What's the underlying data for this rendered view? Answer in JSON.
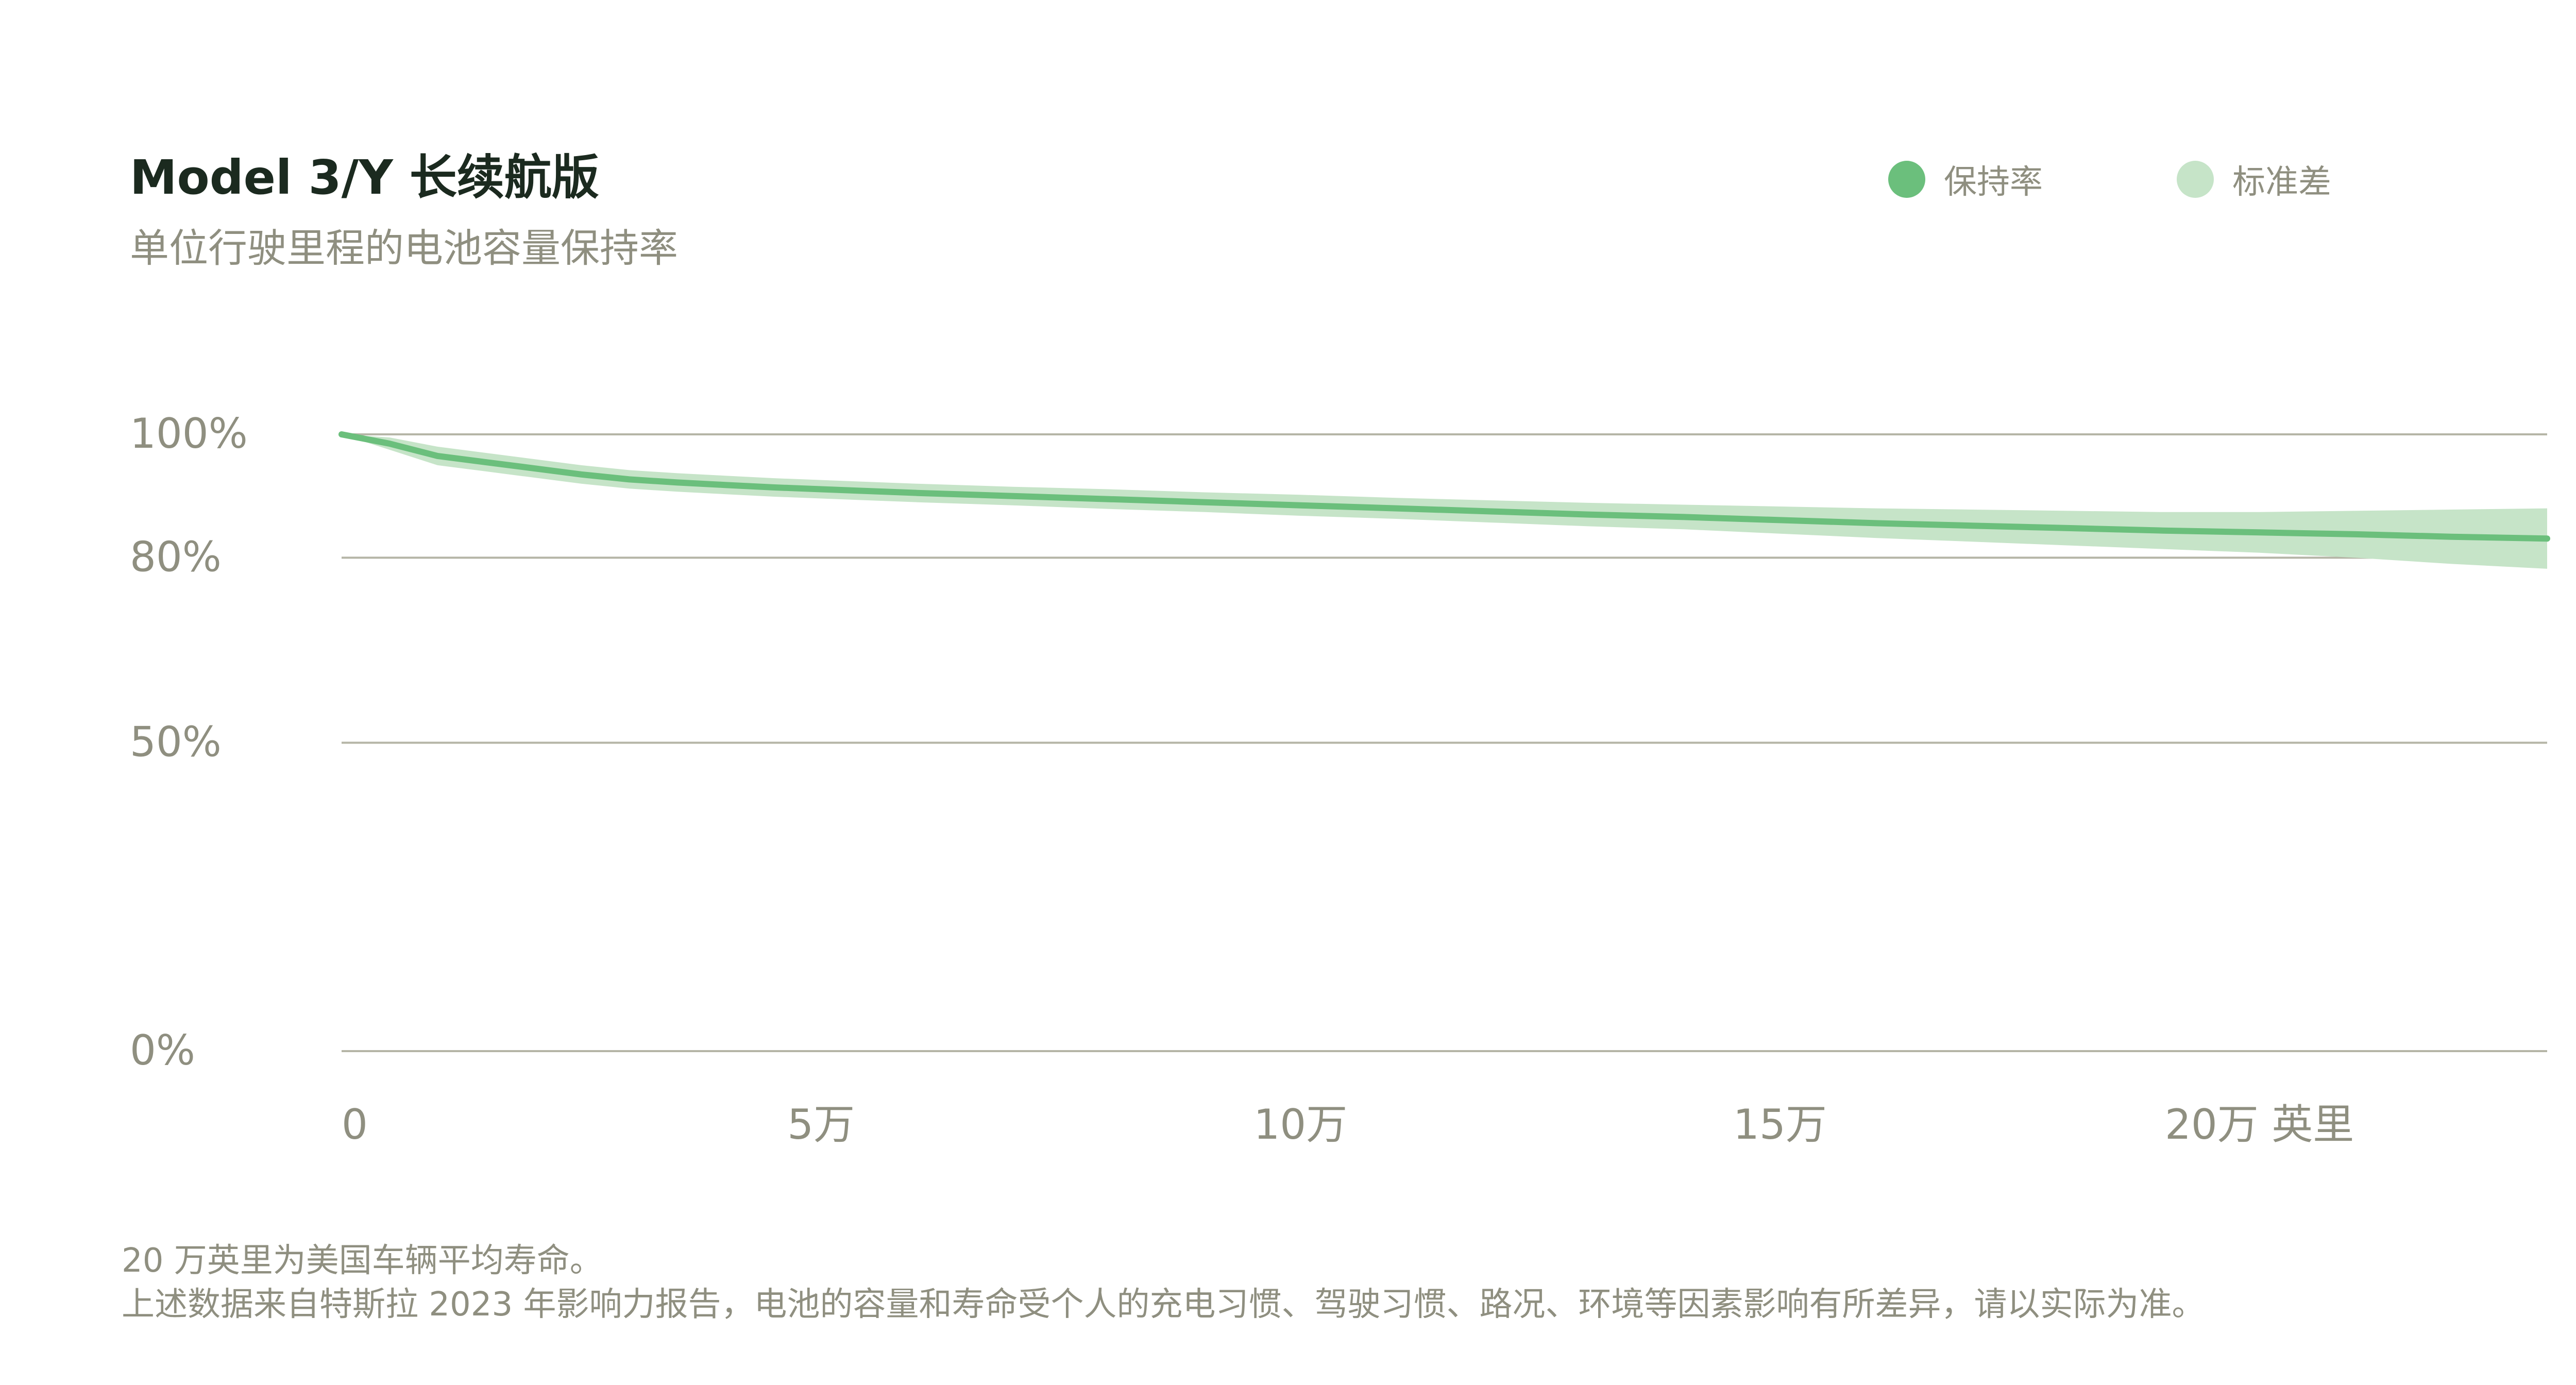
{
  "header": {
    "title": "Model 3/Y 长续航版",
    "subtitle": "单位行驶里程的电池容量保持率"
  },
  "legend": [
    {
      "label": "保持率",
      "color": "#6bbf7c"
    },
    {
      "label": "标准差",
      "color": "#c6e4c8"
    }
  ],
  "footnotes": [
    "20 万英里为美国车辆平均寿命。",
    "上述数据来自特斯拉 2023 年影响力报告，电池的容量和寿命受个人的充电习惯、驾驶习惯、路况、环境等因素影响有所差异，请以实际为准。"
  ],
  "colors": {
    "line": "#6bbf7c",
    "band": "#c6e4c8",
    "grid": "#b5b5a6",
    "tick_text": "#8f8f80"
  },
  "chart_data": {
    "type": "area",
    "title": "Model 3/Y 长续航版",
    "subtitle": "单位行驶里程的电池容量保持率",
    "xlabel": "英里",
    "ylabel": "",
    "xlim": [
      0,
      230000
    ],
    "ylim": [
      0,
      100
    ],
    "y_ticks": [
      {
        "value": 0,
        "label": "0%"
      },
      {
        "value": 50,
        "label": "50%"
      },
      {
        "value": 80,
        "label": "80%"
      },
      {
        "value": 100,
        "label": "100%"
      }
    ],
    "x_ticks": [
      {
        "value": 0,
        "label": "0"
      },
      {
        "value": 50000,
        "label": "5万"
      },
      {
        "value": 100000,
        "label": "10万"
      },
      {
        "value": 150000,
        "label": "15万"
      },
      {
        "value": 200000,
        "label": "20万 英里"
      }
    ],
    "grid": true,
    "legend_position": "top-right",
    "series": [
      {
        "name": "保持率",
        "x": [
          0,
          5000,
          10000,
          15000,
          20000,
          25000,
          30000,
          35000,
          40000,
          45000,
          50000,
          60000,
          70000,
          80000,
          90000,
          100000,
          110000,
          120000,
          130000,
          140000,
          150000,
          160000,
          170000,
          180000,
          190000,
          200000,
          210000,
          220000,
          230000
        ],
        "values": [
          100,
          98.5,
          96.5,
          95.5,
          94.5,
          93.5,
          92.7,
          92.2,
          91.8,
          91.4,
          91.1,
          90.5,
          90.0,
          89.5,
          89.0,
          88.5,
          88.0,
          87.5,
          87.0,
          86.6,
          86.1,
          85.6,
          85.2,
          84.8,
          84.4,
          84.1,
          83.8,
          83.4,
          83.1
        ]
      },
      {
        "name": "标准差",
        "x": [
          0,
          5000,
          10000,
          15000,
          20000,
          25000,
          30000,
          35000,
          40000,
          45000,
          50000,
          60000,
          70000,
          80000,
          90000,
          100000,
          110000,
          120000,
          130000,
          140000,
          150000,
          160000,
          170000,
          180000,
          190000,
          200000,
          210000,
          220000,
          230000
        ],
        "upper": [
          100,
          99.5,
          98.0,
          97.0,
          96.0,
          95.0,
          94.2,
          93.7,
          93.3,
          92.9,
          92.6,
          92.0,
          91.5,
          91.1,
          90.6,
          90.2,
          89.7,
          89.3,
          88.9,
          88.6,
          88.3,
          88.0,
          87.8,
          87.6,
          87.4,
          87.4,
          87.6,
          87.8,
          88.0
        ],
        "lower": [
          100,
          97.5,
          95.0,
          94.0,
          93.0,
          92.0,
          91.2,
          90.7,
          90.3,
          89.9,
          89.6,
          89.0,
          88.5,
          87.9,
          87.4,
          86.8,
          86.3,
          85.7,
          85.1,
          84.6,
          83.9,
          83.2,
          82.6,
          82.0,
          81.4,
          80.8,
          80.0,
          79.0,
          78.2
        ]
      }
    ]
  }
}
